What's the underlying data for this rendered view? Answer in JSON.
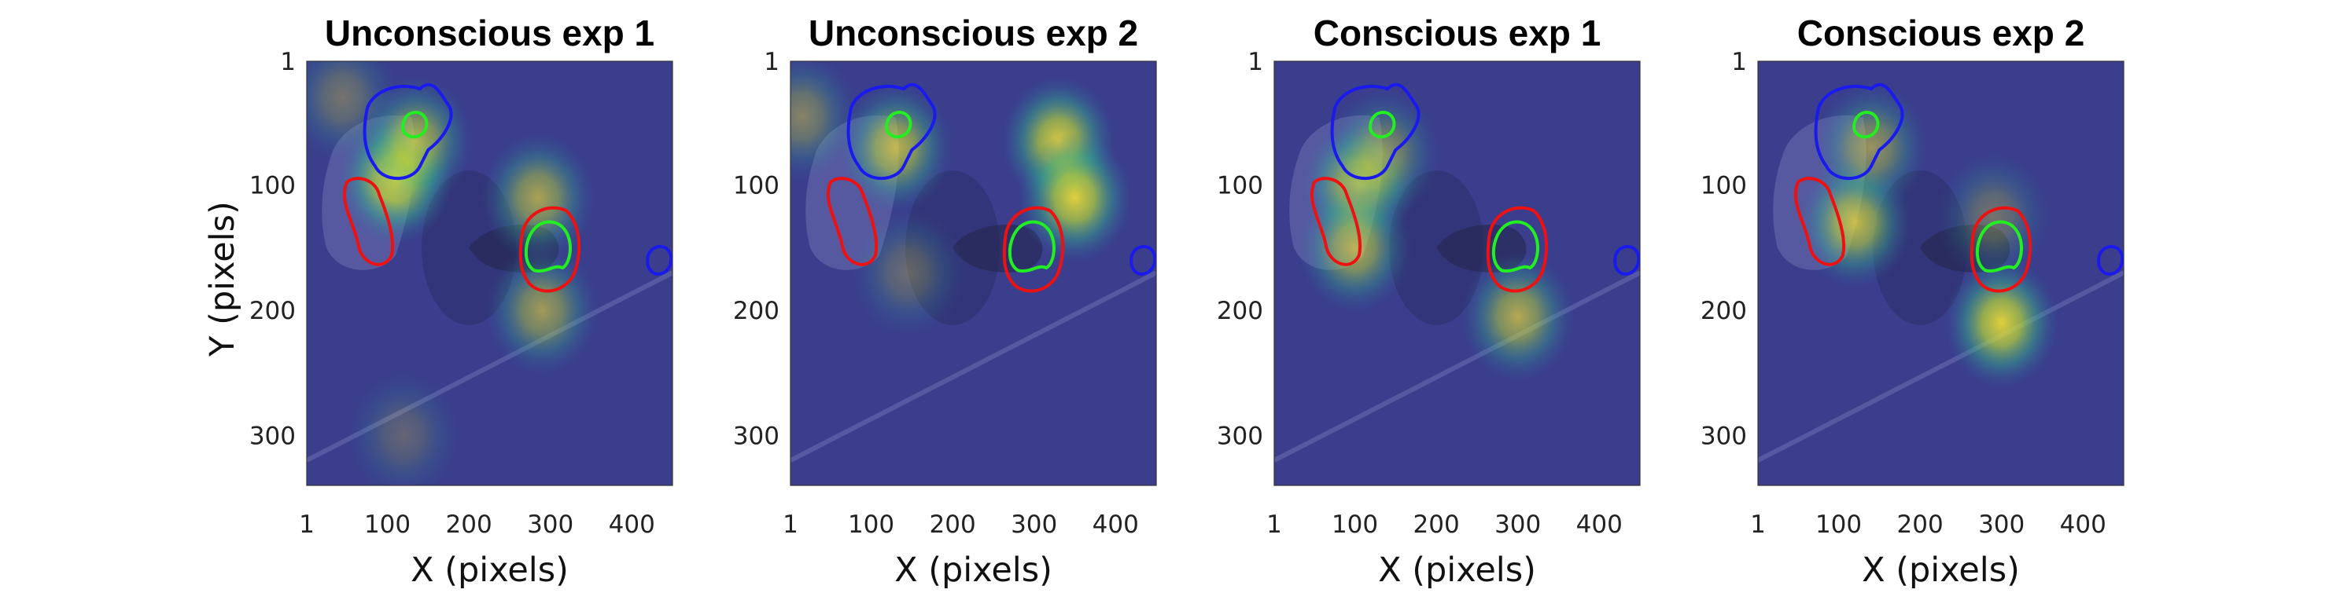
{
  "figure": {
    "xlabel": "X (pixels)",
    "ylabel": "Y (pixels)"
  },
  "chart_data": [
    {
      "type": "heatmap",
      "title": "Unconscious exp 1",
      "xlabel": "X (pixels)",
      "ylabel": "Y (pixels)",
      "xlim": [
        1,
        450
      ],
      "ylim": [
        1,
        340
      ],
      "xticks": [
        1,
        100,
        200,
        300,
        400
      ],
      "yticks": [
        1,
        100,
        200,
        300
      ],
      "hotspots": [
        {
          "x": 110,
          "y": 95,
          "intensity": 1.0
        },
        {
          "x": 135,
          "y": 65,
          "intensity": 0.7
        },
        {
          "x": 285,
          "y": 110,
          "intensity": 0.65
        },
        {
          "x": 290,
          "y": 200,
          "intensity": 0.6
        },
        {
          "x": 45,
          "y": 30,
          "intensity": 0.35
        },
        {
          "x": 120,
          "y": 300,
          "intensity": 0.25
        }
      ]
    },
    {
      "type": "heatmap",
      "title": "Unconscious exp 2",
      "xlabel": "X (pixels)",
      "ylabel": "",
      "xlim": [
        1,
        450
      ],
      "ylim": [
        1,
        340
      ],
      "xticks": [
        1,
        100,
        200,
        300,
        400
      ],
      "yticks": [
        1,
        100,
        200,
        300
      ],
      "hotspots": [
        {
          "x": 330,
          "y": 65,
          "intensity": 0.9
        },
        {
          "x": 350,
          "y": 110,
          "intensity": 0.95
        },
        {
          "x": 130,
          "y": 70,
          "intensity": 0.75
        },
        {
          "x": 15,
          "y": 45,
          "intensity": 0.45
        },
        {
          "x": 145,
          "y": 170,
          "intensity": 0.3
        }
      ]
    },
    {
      "type": "heatmap",
      "title": "Conscious exp 1",
      "xlabel": "X (pixels)",
      "ylabel": "",
      "xlim": [
        1,
        450
      ],
      "ylim": [
        1,
        340
      ],
      "xticks": [
        1,
        100,
        200,
        300,
        400
      ],
      "yticks": [
        1,
        100,
        200,
        300
      ],
      "hotspots": [
        {
          "x": 105,
          "y": 100,
          "intensity": 0.8
        },
        {
          "x": 100,
          "y": 150,
          "intensity": 0.7
        },
        {
          "x": 300,
          "y": 205,
          "intensity": 0.7
        },
        {
          "x": 135,
          "y": 75,
          "intensity": 0.5
        }
      ]
    },
    {
      "type": "heatmap",
      "title": "Conscious exp 2",
      "xlabel": "X (pixels)",
      "ylabel": "",
      "xlim": [
        1,
        450
      ],
      "ylim": [
        1,
        340
      ],
      "xticks": [
        1,
        100,
        200,
        300,
        400
      ],
      "yticks": [
        1,
        100,
        200,
        300
      ],
      "hotspots": [
        {
          "x": 120,
          "y": 130,
          "intensity": 0.8
        },
        {
          "x": 300,
          "y": 210,
          "intensity": 0.95
        },
        {
          "x": 140,
          "y": 70,
          "intensity": 0.55
        },
        {
          "x": 290,
          "y": 125,
          "intensity": 0.35
        }
      ]
    }
  ],
  "colors": {
    "overlay": "#3a3e8c",
    "contour_blue": "#1a1aee",
    "contour_red": "#ee1111",
    "contour_green": "#22ee22"
  }
}
